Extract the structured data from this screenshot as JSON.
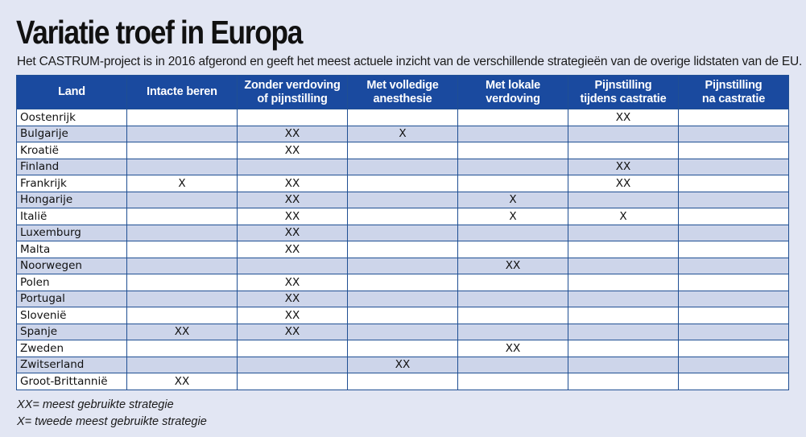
{
  "title": "Variatie troef in Europa",
  "subtitle": "Het CASTRUM-project is in 2016 afgerond en geeft het meest actuele inzicht van de verschillende strategieën van de overige lidstaten van de EU.",
  "table": {
    "headers": [
      [
        "Land"
      ],
      [
        "Intacte beren"
      ],
      [
        "Zonder verdoving",
        "of pijnstilling"
      ],
      [
        "Met volledige",
        "anesthesie"
      ],
      [
        "Met lokale",
        "verdoving"
      ],
      [
        "Pijnstilling",
        "tijdens castratie"
      ],
      [
        "Pijnstilling",
        "na castratie"
      ]
    ],
    "rows": [
      [
        "Oostenrijk",
        "",
        "",
        "",
        "",
        "XX",
        ""
      ],
      [
        "Bulgarije",
        "",
        "XX",
        "X",
        "",
        "",
        ""
      ],
      [
        "Kroatië",
        "",
        "XX",
        "",
        "",
        "",
        ""
      ],
      [
        "Finland",
        "",
        "",
        "",
        "",
        "XX",
        ""
      ],
      [
        "Frankrijk",
        "X",
        "XX",
        "",
        "",
        "XX",
        ""
      ],
      [
        "Hongarije",
        "",
        "XX",
        "",
        "X",
        "",
        ""
      ],
      [
        "Italië",
        "",
        "XX",
        "",
        "X",
        "X",
        ""
      ],
      [
        "Luxemburg",
        "",
        "XX",
        "",
        "",
        "",
        ""
      ],
      [
        "Malta",
        "",
        "XX",
        "",
        "",
        "",
        ""
      ],
      [
        "Noorwegen",
        "",
        "",
        "",
        "XX",
        "",
        ""
      ],
      [
        "Polen",
        "",
        "XX",
        "",
        "",
        "",
        ""
      ],
      [
        "Portugal",
        "",
        "XX",
        "",
        "",
        "",
        ""
      ],
      [
        "Slovenië",
        "",
        "XX",
        "",
        "",
        "",
        ""
      ],
      [
        "Spanje",
        "XX",
        "XX",
        "",
        "",
        "",
        ""
      ],
      [
        "Zweden",
        "",
        "",
        "",
        "XX",
        "",
        ""
      ],
      [
        "Zwitserland",
        "",
        "",
        "XX",
        "",
        "",
        ""
      ],
      [
        "Groot-Brittannië",
        "XX",
        "",
        "",
        "",
        "",
        ""
      ]
    ]
  },
  "legend": [
    "XX= meest gebruikte strategie",
    "X= tweede meest gebruikte strategie"
  ],
  "colors": {
    "background": "#e2e6f3",
    "header": "#1a4a9f",
    "row_alt": "#cdd5ea",
    "border": "#1f4f93"
  }
}
